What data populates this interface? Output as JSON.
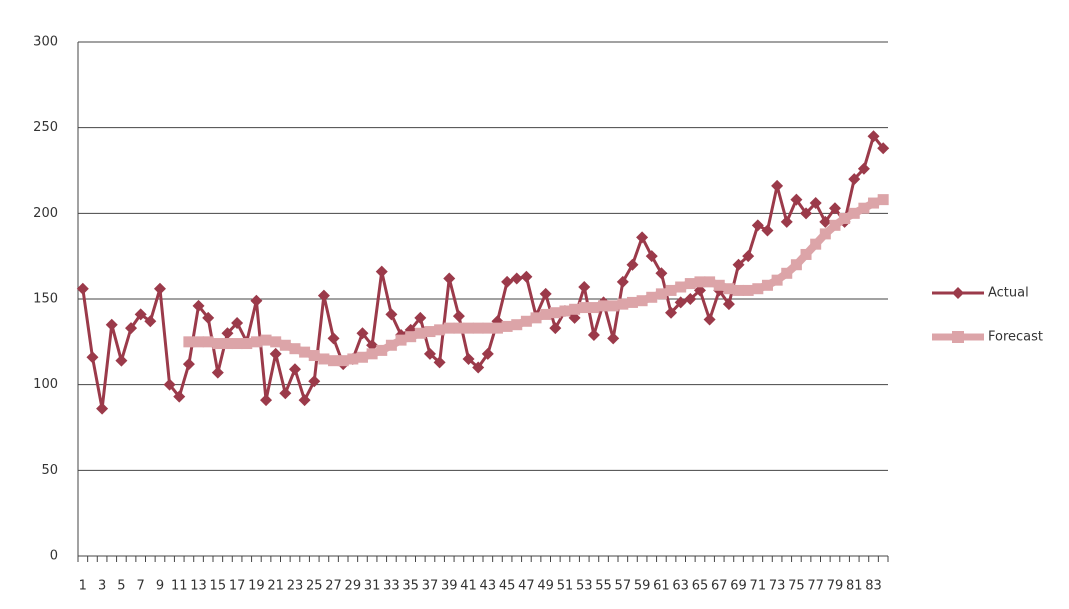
{
  "chart_data": {
    "type": "line",
    "categories": [
      "1",
      null,
      "3",
      null,
      "5",
      null,
      "7",
      null,
      "9",
      null,
      "11",
      null,
      "13",
      null,
      "15",
      null,
      "17",
      null,
      "19",
      null,
      "21",
      null,
      "23",
      null,
      "25",
      null,
      "27",
      null,
      "29",
      null,
      "31",
      null,
      "33",
      null,
      "35",
      null,
      "37",
      null,
      "39",
      null,
      "41",
      null,
      "43",
      null,
      "45",
      null,
      "47",
      null,
      "49",
      null,
      "51",
      null,
      "53",
      null,
      "55",
      null,
      "57",
      null,
      "59",
      null,
      "61",
      null,
      "63",
      null,
      "65",
      null,
      "67",
      null,
      "69",
      null,
      "71",
      null,
      "73",
      null,
      "75",
      null,
      "77",
      null,
      "79",
      null,
      "81",
      null,
      "83",
      null
    ],
    "series": [
      {
        "name": "Actual",
        "color": "#9b3a4a",
        "marker": "diamond",
        "values": [
          156,
          116,
          86,
          135,
          114,
          133,
          141,
          137,
          156,
          100,
          93,
          112,
          146,
          139,
          107,
          130,
          136,
          125,
          149,
          91,
          118,
          95,
          109,
          91,
          102,
          152,
          127,
          112,
          115,
          130,
          123,
          166,
          141,
          129,
          132,
          139,
          118,
          113,
          162,
          140,
          115,
          110,
          118,
          137,
          160,
          162,
          163,
          140,
          153,
          133,
          143,
          139,
          157,
          129,
          148,
          127,
          160,
          170,
          186,
          175,
          165,
          142,
          148,
          150,
          155,
          138,
          155,
          147,
          170,
          175,
          193,
          190,
          216,
          195,
          208,
          200,
          206,
          195,
          203,
          195,
          220,
          226,
          245,
          238
        ]
      },
      {
        "name": "Forecast",
        "color": "#dca4a8",
        "marker": "square",
        "values": [
          null,
          null,
          null,
          null,
          null,
          null,
          null,
          null,
          null,
          null,
          null,
          125,
          125,
          125,
          124,
          124,
          124,
          124,
          125,
          126,
          125,
          123,
          121,
          119,
          117,
          115,
          114,
          114,
          115,
          116,
          118,
          120,
          123,
          126,
          128,
          130,
          131,
          132,
          133,
          133,
          133,
          133,
          133,
          133,
          134,
          135,
          137,
          139,
          141,
          142,
          143,
          144,
          145,
          145,
          146,
          146,
          147,
          148,
          149,
          151,
          153,
          155,
          157,
          159,
          160,
          160,
          158,
          156,
          155,
          155,
          156,
          158,
          161,
          165,
          170,
          176,
          182,
          188,
          193,
          197,
          200,
          203,
          206,
          208
        ]
      }
    ],
    "ylim": [
      0,
      300
    ],
    "yticks": [
      0,
      50,
      100,
      150,
      200,
      250,
      300
    ],
    "grid": true,
    "legend": "right"
  }
}
